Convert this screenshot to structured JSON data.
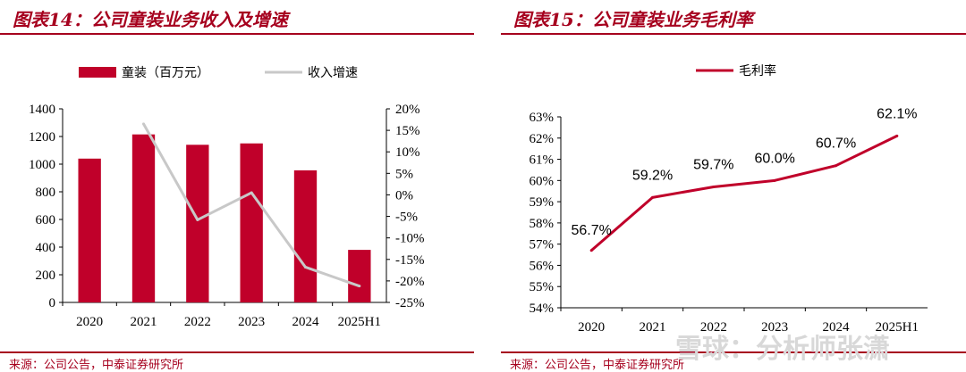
{
  "left": {
    "title": "图表14：公司童装业务收入及增速",
    "source": "来源：公司公告，中泰证券研究所",
    "chart_data": {
      "type": "bar",
      "categories": [
        "2020",
        "2021",
        "2022",
        "2023",
        "2024",
        "2025H1"
      ],
      "series": [
        {
          "name": "童装（百万元）",
          "type": "bar",
          "axis": "left",
          "color": "#c0002a",
          "values": [
            1040,
            1215,
            1140,
            1150,
            955,
            380
          ]
        },
        {
          "name": "收入增速",
          "type": "line",
          "axis": "right",
          "color": "#c8c8c8",
          "values": [
            null,
            16.5,
            -5.8,
            0.5,
            -16.8,
            -21.2
          ]
        }
      ],
      "y_left": {
        "min": 0,
        "max": 1400,
        "ticks": [
          "0",
          "200",
          "400",
          "600",
          "800",
          "1000",
          "1200",
          "1400"
        ]
      },
      "y_right": {
        "min": -25,
        "max": 20,
        "unit": "%",
        "ticks": [
          "-25%",
          "-20%",
          "-15%",
          "-10%",
          "-5%",
          "0%",
          "5%",
          "10%",
          "15%",
          "20%"
        ]
      },
      "legend_position": "top",
      "grid": false
    }
  },
  "right": {
    "title": "图表15：公司童装业务毛利率",
    "source": "来源：公司公告，中泰证券研究所",
    "chart_data": {
      "type": "line",
      "categories": [
        "2020",
        "2021",
        "2022",
        "2023",
        "2024",
        "2025H1"
      ],
      "series": [
        {
          "name": "毛利率",
          "color": "#c0002a",
          "values": [
            56.7,
            59.2,
            59.7,
            60.0,
            60.7,
            62.1
          ],
          "labels": [
            "56.7%",
            "59.2%",
            "59.7%",
            "60.0%",
            "60.7%",
            "62.1%"
          ]
        }
      ],
      "y": {
        "min": 54,
        "max": 63,
        "unit": "%",
        "ticks": [
          "54%",
          "55%",
          "56%",
          "57%",
          "58%",
          "59%",
          "60%",
          "61%",
          "62%",
          "63%"
        ]
      },
      "legend_position": "top",
      "grid": false
    }
  },
  "watermark": "雪球：分析师张潇"
}
